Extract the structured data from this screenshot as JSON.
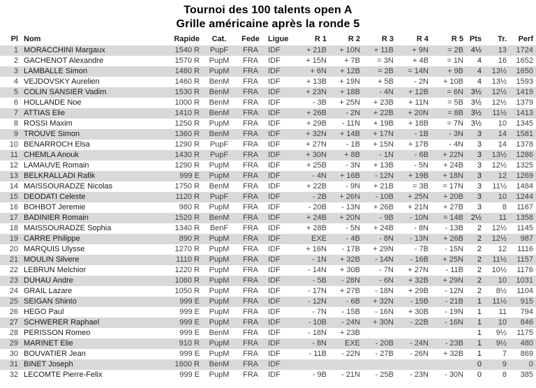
{
  "title_line1": "Tournoi des 100 talents open A",
  "title_line2": "Grille américaine après la ronde 5",
  "colors": {
    "stripe": "#d9d9d9",
    "text": "#3f3f3f",
    "strong": "#1a1a1a"
  },
  "table": {
    "columns": [
      "Pl",
      "Nom",
      "Rapide",
      "Cat.",
      "Fede",
      "Ligue",
      "R 1",
      "R 2",
      "R 3",
      "R 4",
      "R 5",
      "Pts",
      "Tr.",
      "Perf"
    ],
    "rows": [
      [
        "1",
        "MORACCHINI Margaux",
        "1540 R",
        "PupF",
        "FRA",
        "IDF",
        "+ 21B",
        "+ 10N",
        "+ 11B",
        "+ 9N",
        "= 2B",
        "4½",
        "13",
        "1724"
      ],
      [
        "2",
        "GACHENOT Alexandre",
        "1570 R",
        "PupM",
        "FRA",
        "IDF",
        "+ 15N",
        "+ 7B",
        "= 3N",
        "+ 4B",
        "= 1N",
        "4",
        "16",
        "1652"
      ],
      [
        "3",
        "LAMBALLE Simon",
        "1480 R",
        "PupM",
        "FRA",
        "IDF",
        "+ 6N",
        "+ 12B",
        "= 2B",
        "= 14N",
        "+ 9B",
        "4",
        "13½",
        "1650"
      ],
      [
        "4",
        "VEJDOVSKY Aurelien",
        "1460 R",
        "BenM",
        "FRA",
        "IDF",
        "+ 13B",
        "+ 19N",
        "+ 5B",
        "- 2N",
        "+ 10B",
        "4",
        "13½",
        "1593"
      ],
      [
        "5",
        "COLIN SANSIER Vadim",
        "1530 R",
        "BenM",
        "FRA",
        "IDF",
        "+ 23N",
        "+ 18B",
        "- 4N",
        "+ 12B",
        "= 6N",
        "3½",
        "12½",
        "1419"
      ],
      [
        "6",
        "HOLLANDE Noe",
        "1000 R",
        "BenM",
        "FRA",
        "IDF",
        "- 3B",
        "+ 25N",
        "+ 23B",
        "+ 11N",
        "= 5B",
        "3½",
        "12½",
        "1379"
      ],
      [
        "7",
        "ATTIAS Elie",
        "1410 R",
        "BenM",
        "FRA",
        "IDF",
        "+ 26B",
        "- 2N",
        "+ 22B",
        "+ 20N",
        "= 8B",
        "3½",
        "11½",
        "1413"
      ],
      [
        "8",
        "ROSSI Maxim",
        "1250 R",
        "PupM",
        "FRA",
        "IDF",
        "+ 29B",
        "- 11N",
        "+ 19B",
        "+ 18B",
        "= 7N",
        "3½",
        "10",
        "1345"
      ],
      [
        "9",
        "TROUVE Simon",
        "1360 R",
        "BenM",
        "FRA",
        "IDF",
        "+ 32N",
        "+ 14B",
        "+ 17N",
        "- 1B",
        "- 3N",
        "3",
        "14",
        "1581"
      ],
      [
        "10",
        "BENARROCH Elsa",
        "1290 R",
        "PupF",
        "FRA",
        "IDF",
        "+ 27N",
        "- 1B",
        "+ 15N",
        "+ 17B",
        "- 4N",
        "3",
        "14",
        "1378"
      ],
      [
        "11",
        "CHEMLA Anouk",
        "1430 R",
        "PupF",
        "FRA",
        "IDF",
        "+ 30N",
        "+ 8B",
        "- 1N",
        "- 6B",
        "+ 22N",
        "3",
        "13½",
        "1286"
      ],
      [
        "12",
        "LAMAUVE Romain",
        "1290 R",
        "PupM",
        "FRA",
        "IDF",
        "+ 25B",
        "- 3N",
        "+ 13B",
        "- 5N",
        "+ 24B",
        "3",
        "12½",
        "1325"
      ],
      [
        "13",
        "BELKRALLADI Rafik",
        "999 E",
        "PupM",
        "FRA",
        "IDF",
        "- 4N",
        "+ 16B",
        "- 12N",
        "+ 19B",
        "+ 18N",
        "3",
        "12",
        "1269"
      ],
      [
        "14",
        "MAISSOURADZE Nicolas",
        "1750 R",
        "BenM",
        "FRA",
        "IDF",
        "+ 22B",
        "- 9N",
        "+ 21B",
        "= 3B",
        "= 17N",
        "3",
        "11½",
        "1484"
      ],
      [
        "15",
        "DEODATI Celeste",
        "1120 R",
        "PupF",
        "FRA",
        "IDF",
        "- 2B",
        "+ 26N",
        "- 10B",
        "+ 25N",
        "+ 20B",
        "3",
        "10",
        "1244"
      ],
      [
        "16",
        "BOHBOT Jeremie",
        "980 R",
        "PupM",
        "FRA",
        "IDF",
        "- 20B",
        "- 13N",
        "+ 26B",
        "+ 21N",
        "+ 27B",
        "3",
        "8",
        "1167"
      ],
      [
        "17",
        "BADINIER Romain",
        "1520 R",
        "BenM",
        "FRA",
        "IDF",
        "+ 24B",
        "+ 20N",
        "- 9B",
        "- 10N",
        "= 14B",
        "2½",
        "11",
        "1358"
      ],
      [
        "18",
        "MAISSOURADZE Sophia",
        "1340 R",
        "BenF",
        "FRA",
        "IDF",
        "+ 28B",
        "- 5N",
        "+ 24B",
        "- 8N",
        "- 13B",
        "2",
        "12½",
        "1145"
      ],
      [
        "19",
        "CARRE Philippe",
        "890 R",
        "PupM",
        "FRA",
        "IDF",
        "EXE",
        "- 4B",
        "- 8N",
        "- 13N",
        "+ 26B",
        "2",
        "12½",
        "987"
      ],
      [
        "20",
        "MARQUIS Ulysse",
        "1270 R",
        "PupM",
        "FRA",
        "IDF",
        "+ 16N",
        "- 17B",
        "+ 29N",
        "- 7B",
        "- 15N",
        "2",
        "12",
        "1116"
      ],
      [
        "21",
        "MOULIN Silvere",
        "1110 R",
        "PupM",
        "FRA",
        "IDF",
        "- 1N",
        "+ 32B",
        "- 14N",
        "- 16B",
        "+ 25N",
        "2",
        "11½",
        "1157"
      ],
      [
        "22",
        "LEBRUN Melchior",
        "1220 R",
        "PupM",
        "FRA",
        "IDF",
        "- 14N",
        "+ 30B",
        "- 7N",
        "+ 27N",
        "- 11B",
        "2",
        "10½",
        "1176"
      ],
      [
        "23",
        "DUHAU Andre",
        "1060 R",
        "PupM",
        "FRA",
        "IDF",
        "- 5B",
        "- 28N",
        "- 6N",
        "+ 32B",
        "+ 29N",
        "2",
        "10",
        "1031"
      ],
      [
        "24",
        "GRAIL Lazare",
        "1050 R",
        "PupM",
        "FRA",
        "IDF",
        "- 17N",
        "+ 27B",
        "- 18N",
        "+ 29B",
        "- 12N",
        "2",
        "8½",
        "1104"
      ],
      [
        "25",
        "SEIGAN Shinto",
        "999 E",
        "PupM",
        "FRA",
        "IDF",
        "- 12N",
        "- 6B",
        "+ 32N",
        "- 15B",
        "- 21B",
        "1",
        "11½",
        "915"
      ],
      [
        "26",
        "HEGO Paul",
        "999 E",
        "PupM",
        "FRA",
        "IDF",
        "- 7N",
        "- 15B",
        "- 16N",
        "+ 30B",
        "- 19N",
        "1",
        "11",
        "794"
      ],
      [
        "27",
        "SCHWERER Raphael",
        "999 E",
        "PupM",
        "FRA",
        "IDF",
        "- 10B",
        "- 24N",
        "+ 30N",
        "- 22B",
        "- 16N",
        "1",
        "10",
        "846"
      ],
      [
        "28",
        "PERISSON Romeo",
        "999 E",
        "BenM",
        "FRA",
        "IDF",
        "- 18N",
        "+ 23B",
        "",
        "",
        "",
        "1",
        "9½",
        "1175"
      ],
      [
        "29",
        "MARINET Elie",
        "910 R",
        "PupM",
        "FRA",
        "IDF",
        "- 8N",
        "EXE",
        "- 20B",
        "- 24N",
        "- 23B",
        "1",
        "9½",
        "480"
      ],
      [
        "30",
        "BOUVATIER Jean",
        "999 E",
        "PupM",
        "FRA",
        "IDF",
        "- 11B",
        "- 22N",
        "- 27B",
        "- 26N",
        "+ 32B",
        "1",
        "7",
        "869"
      ],
      [
        "31",
        "BINET Joseph",
        "1600 R",
        "BenM",
        "FRA",
        "IDF",
        "",
        "",
        "",
        "",
        "",
        "0",
        "9",
        "0"
      ],
      [
        "32",
        "LECOMTE Pierre-Felix",
        "999 E",
        "PupM",
        "FRA",
        "IDF",
        "- 9B",
        "- 21N",
        "- 25B",
        "- 23N",
        "- 30N",
        "0",
        "8",
        "385"
      ]
    ]
  }
}
